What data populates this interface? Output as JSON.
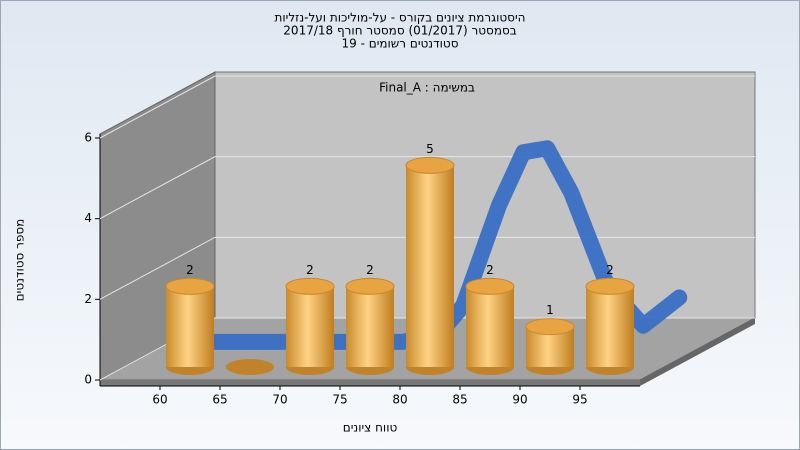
{
  "chart_data": {
    "type": "histogram",
    "title": [
      "היסטוגרמת ציונים בקורס - על-מוליכות ועל-נזליות",
      "בסמסטר  (01/2017)  סמסטר חורף 2017/18",
      "סטודנטים רשומים - 19"
    ],
    "subtitle": "במשימה : Final_A",
    "x_label": "טווח ציונים",
    "y_label": "מספר סטודנטים",
    "bins": [
      60,
      65,
      70,
      75,
      80,
      85,
      90,
      95,
      100
    ],
    "counts": [
      2,
      0,
      2,
      2,
      5,
      2,
      1,
      2
    ],
    "color": "#e8a440",
    "xlim": [
      55,
      100
    ],
    "xticks": [
      60,
      65,
      70,
      75,
      80,
      85,
      90,
      95
    ],
    "ylim": [
      0,
      6
    ],
    "yticks": [
      0,
      2,
      4,
      6
    ],
    "grid": true,
    "curve": {
      "x": [
        57,
        65,
        75,
        78,
        80,
        83,
        85,
        87,
        89,
        92,
        95,
        98
      ],
      "values": [
        0.1,
        0.1,
        0.1,
        0.3,
        1,
        3.5,
        4.8,
        4.9,
        3.8,
        1.5,
        0.5,
        1.2
      ],
      "color": "#3a6fc4"
    }
  }
}
